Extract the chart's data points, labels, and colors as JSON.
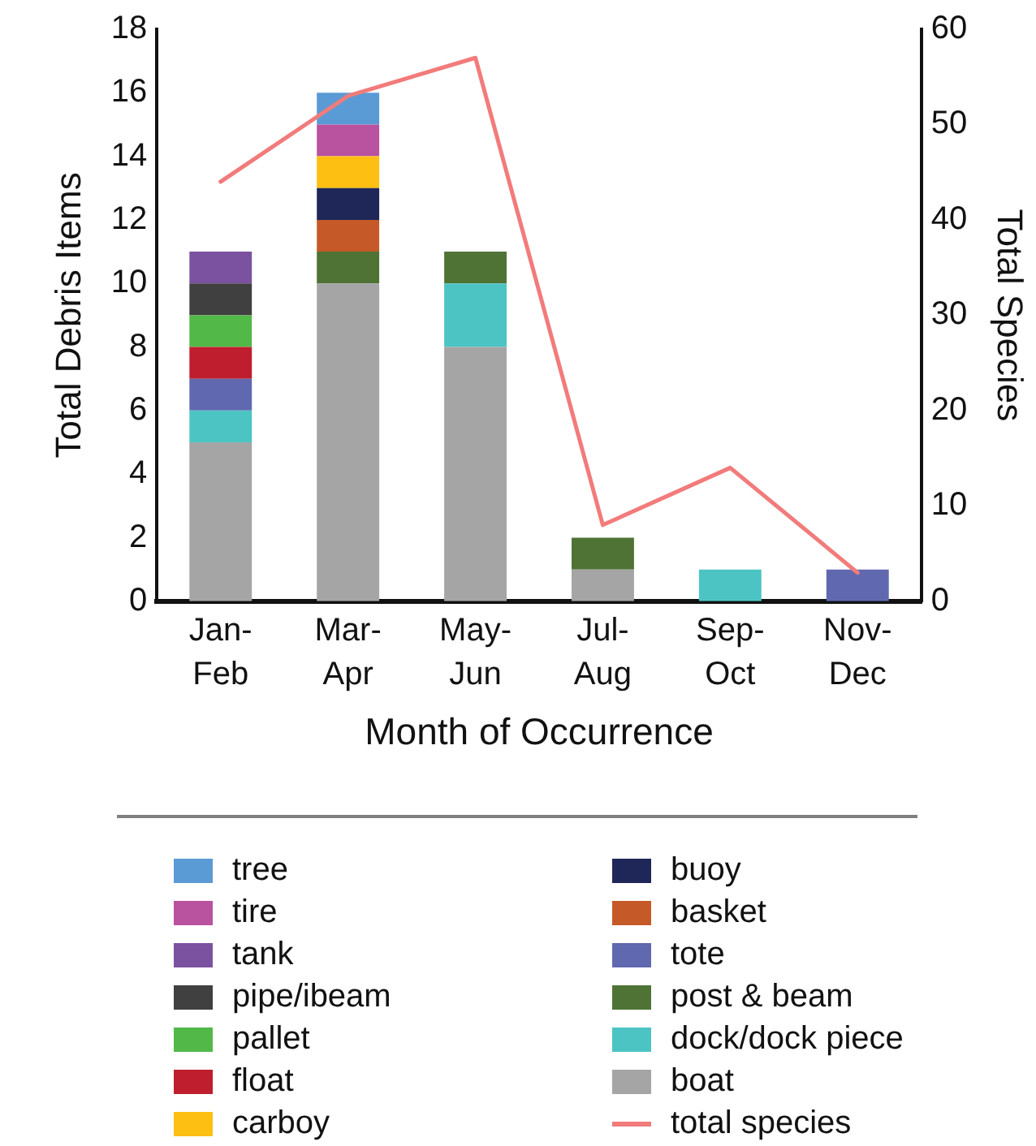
{
  "chart_data": {
    "type": "bar",
    "stacked": true,
    "xlabel": "Month of Occurrence",
    "ylabel": "Total Debris Items",
    "y2label": "Total Species",
    "categories": [
      "Jan-Feb",
      "Mar-Apr",
      "May-Jun",
      "Jul-Aug",
      "Sep-Oct",
      "Nov-Dec"
    ],
    "series": [
      {
        "name": "boat",
        "color": "#a5a5a5",
        "values": [
          5,
          10,
          8,
          1,
          null,
          null
        ]
      },
      {
        "name": "dock/dock piece",
        "color": "#4dc4c4",
        "values": [
          1,
          null,
          2,
          null,
          1,
          null
        ]
      },
      {
        "name": "post & beam",
        "color": "#4f7335",
        "values": [
          null,
          1,
          1,
          1,
          null,
          null
        ]
      },
      {
        "name": "tote",
        "color": "#6068b0",
        "values": [
          1,
          null,
          null,
          null,
          null,
          1
        ]
      },
      {
        "name": "basket",
        "color": "#c55a28",
        "values": [
          null,
          1,
          null,
          null,
          null,
          null
        ]
      },
      {
        "name": "buoy",
        "color": "#1f2758",
        "values": [
          null,
          1,
          null,
          null,
          null,
          null
        ]
      },
      {
        "name": "carboy",
        "color": "#fdbf12",
        "values": [
          null,
          1,
          null,
          null,
          null,
          null
        ]
      },
      {
        "name": "float",
        "color": "#be1e2d",
        "values": [
          1,
          null,
          null,
          null,
          null,
          null
        ]
      },
      {
        "name": "pallet",
        "color": "#52b848",
        "values": [
          1,
          null,
          null,
          null,
          null,
          null
        ]
      },
      {
        "name": "pipe/ibeam",
        "color": "#404040",
        "values": [
          1,
          null,
          null,
          null,
          null,
          null
        ]
      },
      {
        "name": "tank",
        "color": "#7b52a0",
        "values": [
          1,
          null,
          null,
          null,
          null,
          null
        ]
      },
      {
        "name": "tire",
        "color": "#b9529f",
        "values": [
          null,
          1,
          null,
          null,
          null,
          null
        ]
      },
      {
        "name": "tree",
        "color": "#5b9bd5",
        "values": [
          null,
          1,
          null,
          null,
          null,
          null
        ]
      },
      {
        "name": "total species",
        "type": "line",
        "axis": "y2",
        "color": "#f27b7b",
        "values": [
          44,
          53,
          57,
          8,
          14,
          3
        ]
      }
    ],
    "ylim": [
      0,
      18
    ],
    "yticks": [
      0,
      2,
      4,
      6,
      8,
      10,
      12,
      14,
      16,
      18
    ],
    "y2lim": [
      0,
      60
    ],
    "y2ticks": [
      0,
      10,
      20,
      30,
      40,
      50,
      60
    ],
    "legend": "bottom",
    "marker": "none"
  }
}
